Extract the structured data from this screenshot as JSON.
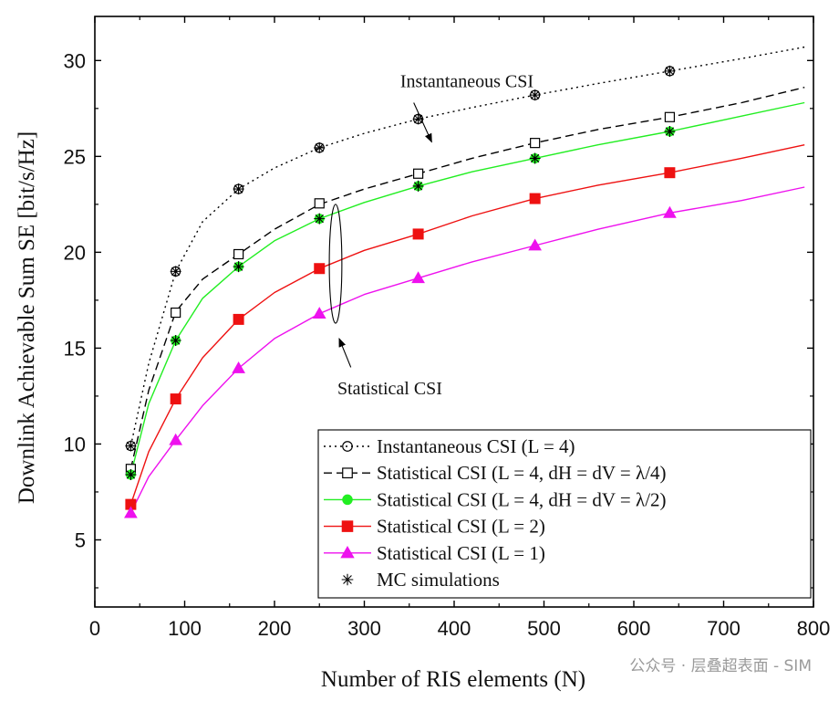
{
  "chart_data": {
    "type": "line",
    "xlabel": "Number of RIS elements (N)",
    "ylabel": "Downlink Achievable Sum SE [bit/s/Hz]",
    "xlim": [
      0,
      800
    ],
    "ylim": [
      1.5,
      32.3
    ],
    "xticks": [
      0,
      100,
      200,
      300,
      400,
      500,
      600,
      700,
      800
    ],
    "yticks": [
      5,
      10,
      15,
      20,
      25,
      30
    ],
    "grid": false,
    "legend_position": "bottom-right",
    "markers_x": [
      40,
      90,
      160,
      250,
      360,
      490,
      640
    ],
    "series": [
      {
        "name": "Instantaneous CSI (L = 4)",
        "color": "#000000",
        "line": "dotted",
        "marker": "circle-open",
        "curve": [
          [
            40,
            9.9
          ],
          [
            60,
            14.2
          ],
          [
            90,
            19.0
          ],
          [
            120,
            21.6
          ],
          [
            160,
            23.3
          ],
          [
            200,
            24.4
          ],
          [
            250,
            25.45
          ],
          [
            300,
            26.2
          ],
          [
            360,
            26.95
          ],
          [
            420,
            27.55
          ],
          [
            490,
            28.2
          ],
          [
            560,
            28.8
          ],
          [
            640,
            29.45
          ],
          [
            720,
            30.1
          ],
          [
            790,
            30.7
          ]
        ],
        "values": [
          9.9,
          19.0,
          23.3,
          25.45,
          26.95,
          28.2,
          29.45
        ]
      },
      {
        "name": "Statistical CSI (L = 4, dH = dV = λ/4)",
        "color": "#000000",
        "line": "dashed",
        "marker": "square-open",
        "curve": [
          [
            40,
            8.7
          ],
          [
            60,
            12.8
          ],
          [
            90,
            16.9
          ],
          [
            120,
            18.6
          ],
          [
            160,
            19.9
          ],
          [
            200,
            21.2
          ],
          [
            250,
            22.5
          ],
          [
            300,
            23.3
          ],
          [
            360,
            24.1
          ],
          [
            420,
            24.9
          ],
          [
            490,
            25.7
          ],
          [
            560,
            26.4
          ],
          [
            640,
            27.05
          ],
          [
            720,
            27.8
          ],
          [
            790,
            28.6
          ]
        ],
        "values": [
          8.7,
          16.85,
          19.9,
          22.55,
          24.1,
          25.7,
          27.05
        ]
      },
      {
        "name": "Statistical CSI (L = 4, dH = dV = λ/2)",
        "color": "#22ee22",
        "line": "solid",
        "marker": "circle-filled",
        "curve": [
          [
            40,
            8.4
          ],
          [
            60,
            12.1
          ],
          [
            90,
            15.4
          ],
          [
            120,
            17.6
          ],
          [
            160,
            19.25
          ],
          [
            200,
            20.6
          ],
          [
            250,
            21.75
          ],
          [
            300,
            22.6
          ],
          [
            360,
            23.45
          ],
          [
            420,
            24.2
          ],
          [
            490,
            24.9
          ],
          [
            560,
            25.6
          ],
          [
            640,
            26.3
          ],
          [
            720,
            27.1
          ],
          [
            790,
            27.8
          ]
        ],
        "values": [
          8.4,
          15.4,
          19.25,
          21.75,
          23.45,
          24.9,
          26.3
        ]
      },
      {
        "name": "Statistical CSI (L = 2)",
        "color": "#ee1111",
        "line": "solid",
        "marker": "square-filled",
        "curve": [
          [
            40,
            6.85
          ],
          [
            60,
            9.6
          ],
          [
            90,
            12.35
          ],
          [
            120,
            14.5
          ],
          [
            160,
            16.5
          ],
          [
            200,
            17.9
          ],
          [
            250,
            19.15
          ],
          [
            300,
            20.1
          ],
          [
            360,
            20.95
          ],
          [
            420,
            21.9
          ],
          [
            490,
            22.8
          ],
          [
            560,
            23.5
          ],
          [
            640,
            24.15
          ],
          [
            720,
            24.9
          ],
          [
            790,
            25.6
          ]
        ],
        "values": [
          6.85,
          12.35,
          16.5,
          19.15,
          20.95,
          22.8,
          24.15
        ]
      },
      {
        "name": "Statistical CSI (L = 1)",
        "color": "#ee11ee",
        "line": "solid",
        "marker": "triangle-filled",
        "curve": [
          [
            40,
            6.4
          ],
          [
            60,
            8.3
          ],
          [
            90,
            10.2
          ],
          [
            120,
            12.0
          ],
          [
            160,
            13.95
          ],
          [
            200,
            15.5
          ],
          [
            250,
            16.8
          ],
          [
            300,
            17.8
          ],
          [
            360,
            18.65
          ],
          [
            420,
            19.5
          ],
          [
            490,
            20.35
          ],
          [
            560,
            21.2
          ],
          [
            640,
            22.05
          ],
          [
            720,
            22.7
          ],
          [
            790,
            23.4
          ]
        ],
        "values": [
          6.4,
          10.2,
          13.95,
          16.8,
          18.65,
          20.35,
          22.05
        ]
      }
    ],
    "mc_simulations": {
      "name": "MC simulations",
      "marker": "asterisk",
      "points": [
        [
          40,
          9.9
        ],
        [
          90,
          19.0
        ],
        [
          160,
          23.3
        ],
        [
          250,
          25.45
        ],
        [
          360,
          26.95
        ],
        [
          490,
          28.2
        ],
        [
          640,
          29.45
        ],
        [
          40,
          8.4
        ],
        [
          90,
          15.4
        ],
        [
          160,
          19.25
        ],
        [
          250,
          21.75
        ],
        [
          360,
          23.45
        ],
        [
          490,
          24.9
        ],
        [
          640,
          26.3
        ]
      ]
    },
    "annotations": [
      {
        "text": "Instantaneous CSI",
        "text_x": 340,
        "text_y": 28.6,
        "arrow_from": [
          355,
          27.8
        ],
        "arrow_to": [
          375,
          25.75
        ]
      },
      {
        "text": "Statistical CSI",
        "text_x": 270,
        "text_y": 12.6,
        "arrow_from": [
          285,
          14.0
        ],
        "arrow_to": [
          272,
          15.5
        ]
      }
    ],
    "ellipse": {
      "cx": 268,
      "cy": 19.4,
      "rx": 7,
      "ry": 3.1
    }
  },
  "watermark": "公众号 · 层叠超表面 - SIM"
}
